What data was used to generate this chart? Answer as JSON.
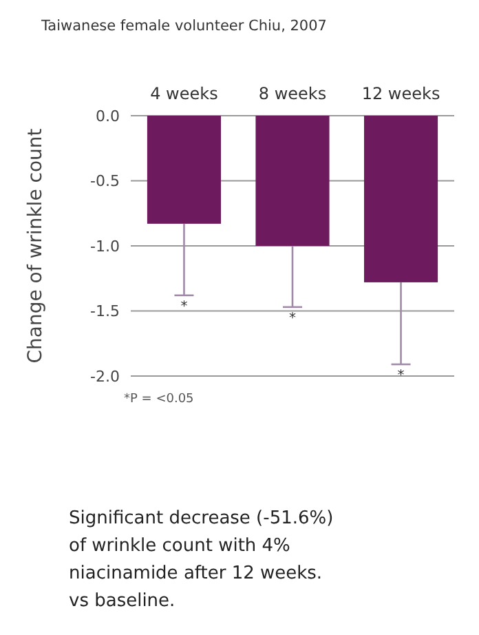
{
  "chart_data": {
    "type": "bar",
    "title": "Taiwanese female volunteer Chiu, 2007",
    "ylabel": "Change of wrinkle count",
    "categories": [
      "4 weeks",
      "8 weeks",
      "12 weeks"
    ],
    "values": [
      -0.83,
      -1.0,
      -1.28
    ],
    "color": "#6e1a5e",
    "errors": [
      [
        -1.38,
        -0.83
      ],
      [
        -1.47,
        -1.0
      ],
      [
        -1.91,
        -1.28
      ]
    ],
    "ylim": [
      -2.0,
      0
    ],
    "yticks": [
      {
        "value": 0,
        "label": "0.0"
      },
      {
        "value": -0.5,
        "label": "-0.5"
      },
      {
        "value": -1,
        "label": "-1.0"
      },
      {
        "value": -1.5,
        "label": "-1.5"
      },
      {
        "value": -2,
        "label": "-2.0"
      }
    ],
    "grid": "y",
    "annotations": [
      "*",
      "*",
      "*",
      "*P = <0.05",
      "Significant decrease (-51.6%)\nof wrinkle count with 4%\nniacinamide after 12 weeks.\nvs baseline."
    ]
  }
}
